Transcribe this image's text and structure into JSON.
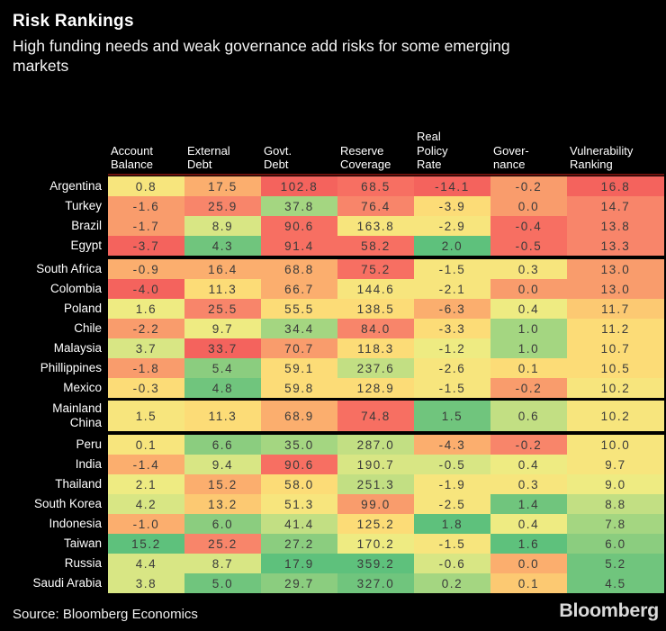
{
  "title": "Risk Rankings",
  "subtitle": "High funding needs and weak governance add risks for some emerging\nmarkets",
  "source": "Source: Bloomberg Economics",
  "brand": "Bloomberg",
  "palette": {
    "c1": "#f4635d",
    "c2": "#f76f62",
    "c3": "#f8856a",
    "c4": "#f99c6c",
    "c5": "#fbae6e",
    "c6": "#fcc972",
    "c7": "#fcdc77",
    "c8": "#f7e57d",
    "c9": "#eeeb82",
    "c10": "#d8e684",
    "c11": "#c2df83",
    "c12": "#a4d681",
    "c13": "#8bcd7f",
    "c14": "#70c57d",
    "c15": "#5ec17c"
  },
  "chart_data": {
    "type": "heatmap",
    "legend": "red = higher risk, green = lower risk",
    "columns": [
      "Account\nBalance",
      "External\nDebt",
      "Govt.\nDebt",
      "Reserve\nCoverage",
      "Real\nPolicy\nRate",
      "Gover-\nnance",
      "Vulnerability\nRanking"
    ],
    "rows": [
      {
        "label": "Argentina",
        "values": [
          "0.8",
          "17.5",
          "102.8",
          "68.5",
          "-14.1",
          "-0.2",
          "16.8"
        ],
        "colors": [
          "c8",
          "c5",
          "c1",
          "c2",
          "c1",
          "c4",
          "c1"
        ]
      },
      {
        "label": "Turkey",
        "values": [
          "-1.6",
          "25.9",
          "37.8",
          "76.4",
          "-3.9",
          "0.0",
          "14.7"
        ],
        "colors": [
          "c4",
          "c3",
          "c12",
          "c3",
          "c7",
          "c4",
          "c3"
        ]
      },
      {
        "label": "Brazil",
        "values": [
          "-1.7",
          "8.9",
          "90.6",
          "163.8",
          "-2.9",
          "-0.4",
          "13.8"
        ],
        "colors": [
          "c4",
          "c10",
          "c2",
          "c8",
          "c8",
          "c2",
          "c3"
        ]
      },
      {
        "label": "Egypt",
        "values": [
          "-3.7",
          "4.3",
          "91.4",
          "58.2",
          "2.0",
          "-0.5",
          "13.3"
        ],
        "colors": [
          "c1",
          "c14",
          "c2",
          "c2",
          "c15",
          "c2",
          "c3"
        ],
        "gap_below": true
      },
      {
        "label": "South Africa",
        "values": [
          "-0.9",
          "16.4",
          "68.8",
          "75.2",
          "-1.5",
          "0.3",
          "13.0"
        ],
        "colors": [
          "c5",
          "c5",
          "c5",
          "c2",
          "c8",
          "c8",
          "c4"
        ]
      },
      {
        "label": "Colombia",
        "values": [
          "-4.0",
          "11.3",
          "66.7",
          "144.6",
          "-2.1",
          "0.0",
          "13.0"
        ],
        "colors": [
          "c1",
          "c7",
          "c5",
          "c8",
          "c8",
          "c4",
          "c4"
        ]
      },
      {
        "label": "Poland",
        "values": [
          "1.6",
          "25.5",
          "55.5",
          "138.5",
          "-6.3",
          "0.4",
          "11.7"
        ],
        "colors": [
          "c9",
          "c3",
          "c7",
          "c7",
          "c5",
          "c9",
          "c6"
        ]
      },
      {
        "label": "Chile",
        "values": [
          "-2.2",
          "9.7",
          "34.4",
          "84.0",
          "-3.3",
          "1.0",
          "11.2"
        ],
        "colors": [
          "c4",
          "c9",
          "c12",
          "c3",
          "c7",
          "c12",
          "c7"
        ]
      },
      {
        "label": "Malaysia",
        "values": [
          "3.7",
          "33.7",
          "70.7",
          "118.3",
          "-1.2",
          "1.0",
          "10.7"
        ],
        "colors": [
          "c10",
          "c1",
          "c4",
          "c7",
          "c9",
          "c12",
          "c7"
        ]
      },
      {
        "label": "Phillippines",
        "values": [
          "-1.8",
          "5.4",
          "59.1",
          "237.6",
          "-2.6",
          "0.1",
          "10.5"
        ],
        "colors": [
          "c4",
          "c13",
          "c7",
          "c11",
          "c8",
          "c7",
          "c7"
        ]
      },
      {
        "label": "Mexico",
        "values": [
          "-0.3",
          "4.8",
          "59.8",
          "128.9",
          "-1.5",
          "-0.2",
          "10.2"
        ],
        "colors": [
          "c7",
          "c14",
          "c7",
          "c7",
          "c8",
          "c4",
          "c8"
        ]
      },
      {
        "label": "Mainland\nChina",
        "values": [
          "1.5",
          "11.3",
          "68.9",
          "74.8",
          "1.5",
          "0.6",
          "10.2"
        ],
        "colors": [
          "c8",
          "c7",
          "c5",
          "c2",
          "c14",
          "c11",
          "c8"
        ],
        "tall": true,
        "gap_above": true,
        "gap_below": true
      },
      {
        "label": "Peru",
        "values": [
          "0.1",
          "6.6",
          "35.0",
          "287.0",
          "-4.3",
          "-0.2",
          "10.0"
        ],
        "colors": [
          "c8",
          "c13",
          "c12",
          "c11",
          "c5",
          "c3",
          "c8"
        ]
      },
      {
        "label": "India",
        "values": [
          "-1.4",
          "9.4",
          "90.6",
          "190.7",
          "-0.5",
          "0.4",
          "9.7"
        ],
        "colors": [
          "c5",
          "c10",
          "c2",
          "c10",
          "c10",
          "c9",
          "c8"
        ]
      },
      {
        "label": "Thailand",
        "values": [
          "2.1",
          "15.2",
          "58.0",
          "251.3",
          "-1.9",
          "0.3",
          "9.0"
        ],
        "colors": [
          "c9",
          "c5",
          "c7",
          "c11",
          "c8",
          "c8",
          "c9"
        ]
      },
      {
        "label": "South Korea",
        "values": [
          "4.2",
          "13.2",
          "51.3",
          "99.0",
          "-2.5",
          "1.4",
          "8.8"
        ],
        "colors": [
          "c10",
          "c6",
          "c8",
          "c4",
          "c8",
          "c14",
          "c11"
        ]
      },
      {
        "label": "Indonesia",
        "values": [
          "-1.0",
          "6.0",
          "41.4",
          "125.2",
          "1.8",
          "0.4",
          "7.8"
        ],
        "colors": [
          "c5",
          "c13",
          "c11",
          "c7",
          "c15",
          "c9",
          "c12"
        ]
      },
      {
        "label": "Taiwan",
        "values": [
          "15.2",
          "25.2",
          "27.2",
          "170.2",
          "-1.5",
          "1.6",
          "6.0"
        ],
        "colors": [
          "c15",
          "c3",
          "c13",
          "c9",
          "c8",
          "c15",
          "c13"
        ]
      },
      {
        "label": "Russia",
        "values": [
          "4.4",
          "8.7",
          "17.9",
          "359.2",
          "-0.6",
          "0.0",
          "5.2"
        ],
        "colors": [
          "c10",
          "c10",
          "c15",
          "c15",
          "c10",
          "c5",
          "c14"
        ]
      },
      {
        "label": "Saudi Arabia",
        "values": [
          "3.8",
          "5.0",
          "29.7",
          "327.0",
          "0.2",
          "0.1",
          "4.5"
        ],
        "colors": [
          "c10",
          "c14",
          "c13",
          "c14",
          "c12",
          "c6",
          "c14"
        ]
      }
    ]
  }
}
